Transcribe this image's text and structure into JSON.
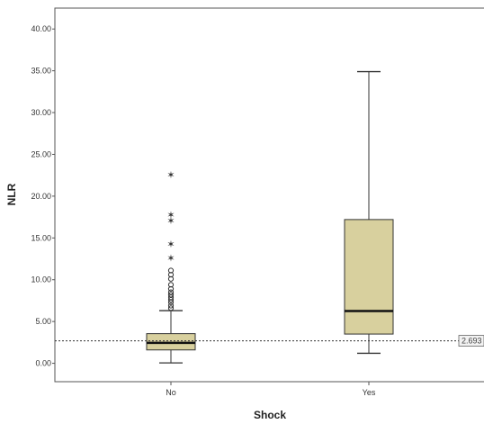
{
  "chart_data": {
    "type": "box",
    "xlabel": "Shock",
    "ylabel": "NLR",
    "ylim": [
      -2.2,
      42.5
    ],
    "yticks": [
      "40.00",
      "35.00",
      "30.00",
      "25.00",
      "20.00",
      "15.00",
      "10.00",
      "5.00",
      "0.00"
    ],
    "ytick_values": [
      40,
      35,
      30,
      25,
      20,
      15,
      10,
      5,
      0
    ],
    "categories": [
      "No",
      "Yes"
    ],
    "boxes": [
      {
        "category": "No",
        "whisker_low": 0.05,
        "q1": 1.6,
        "median": 2.45,
        "q3": 3.55,
        "whisker_high": 6.3,
        "outliers_circle": [
          6.6,
          6.9,
          7.3,
          7.6,
          7.9,
          8.2,
          8.5,
          8.9,
          9.4,
          10.1,
          10.6,
          11.1
        ],
        "outliers_star": [
          12.6,
          14.3,
          17.1,
          17.8,
          22.6
        ]
      },
      {
        "category": "Yes",
        "whisker_low": 1.2,
        "q1": 3.5,
        "median": 6.25,
        "q3": 17.2,
        "whisker_high": 34.9
      }
    ],
    "reference_line": {
      "value": 2.693,
      "label": "2.693"
    },
    "box_fill": "#d8d09e",
    "box_stroke": "#333333",
    "grid": false
  }
}
